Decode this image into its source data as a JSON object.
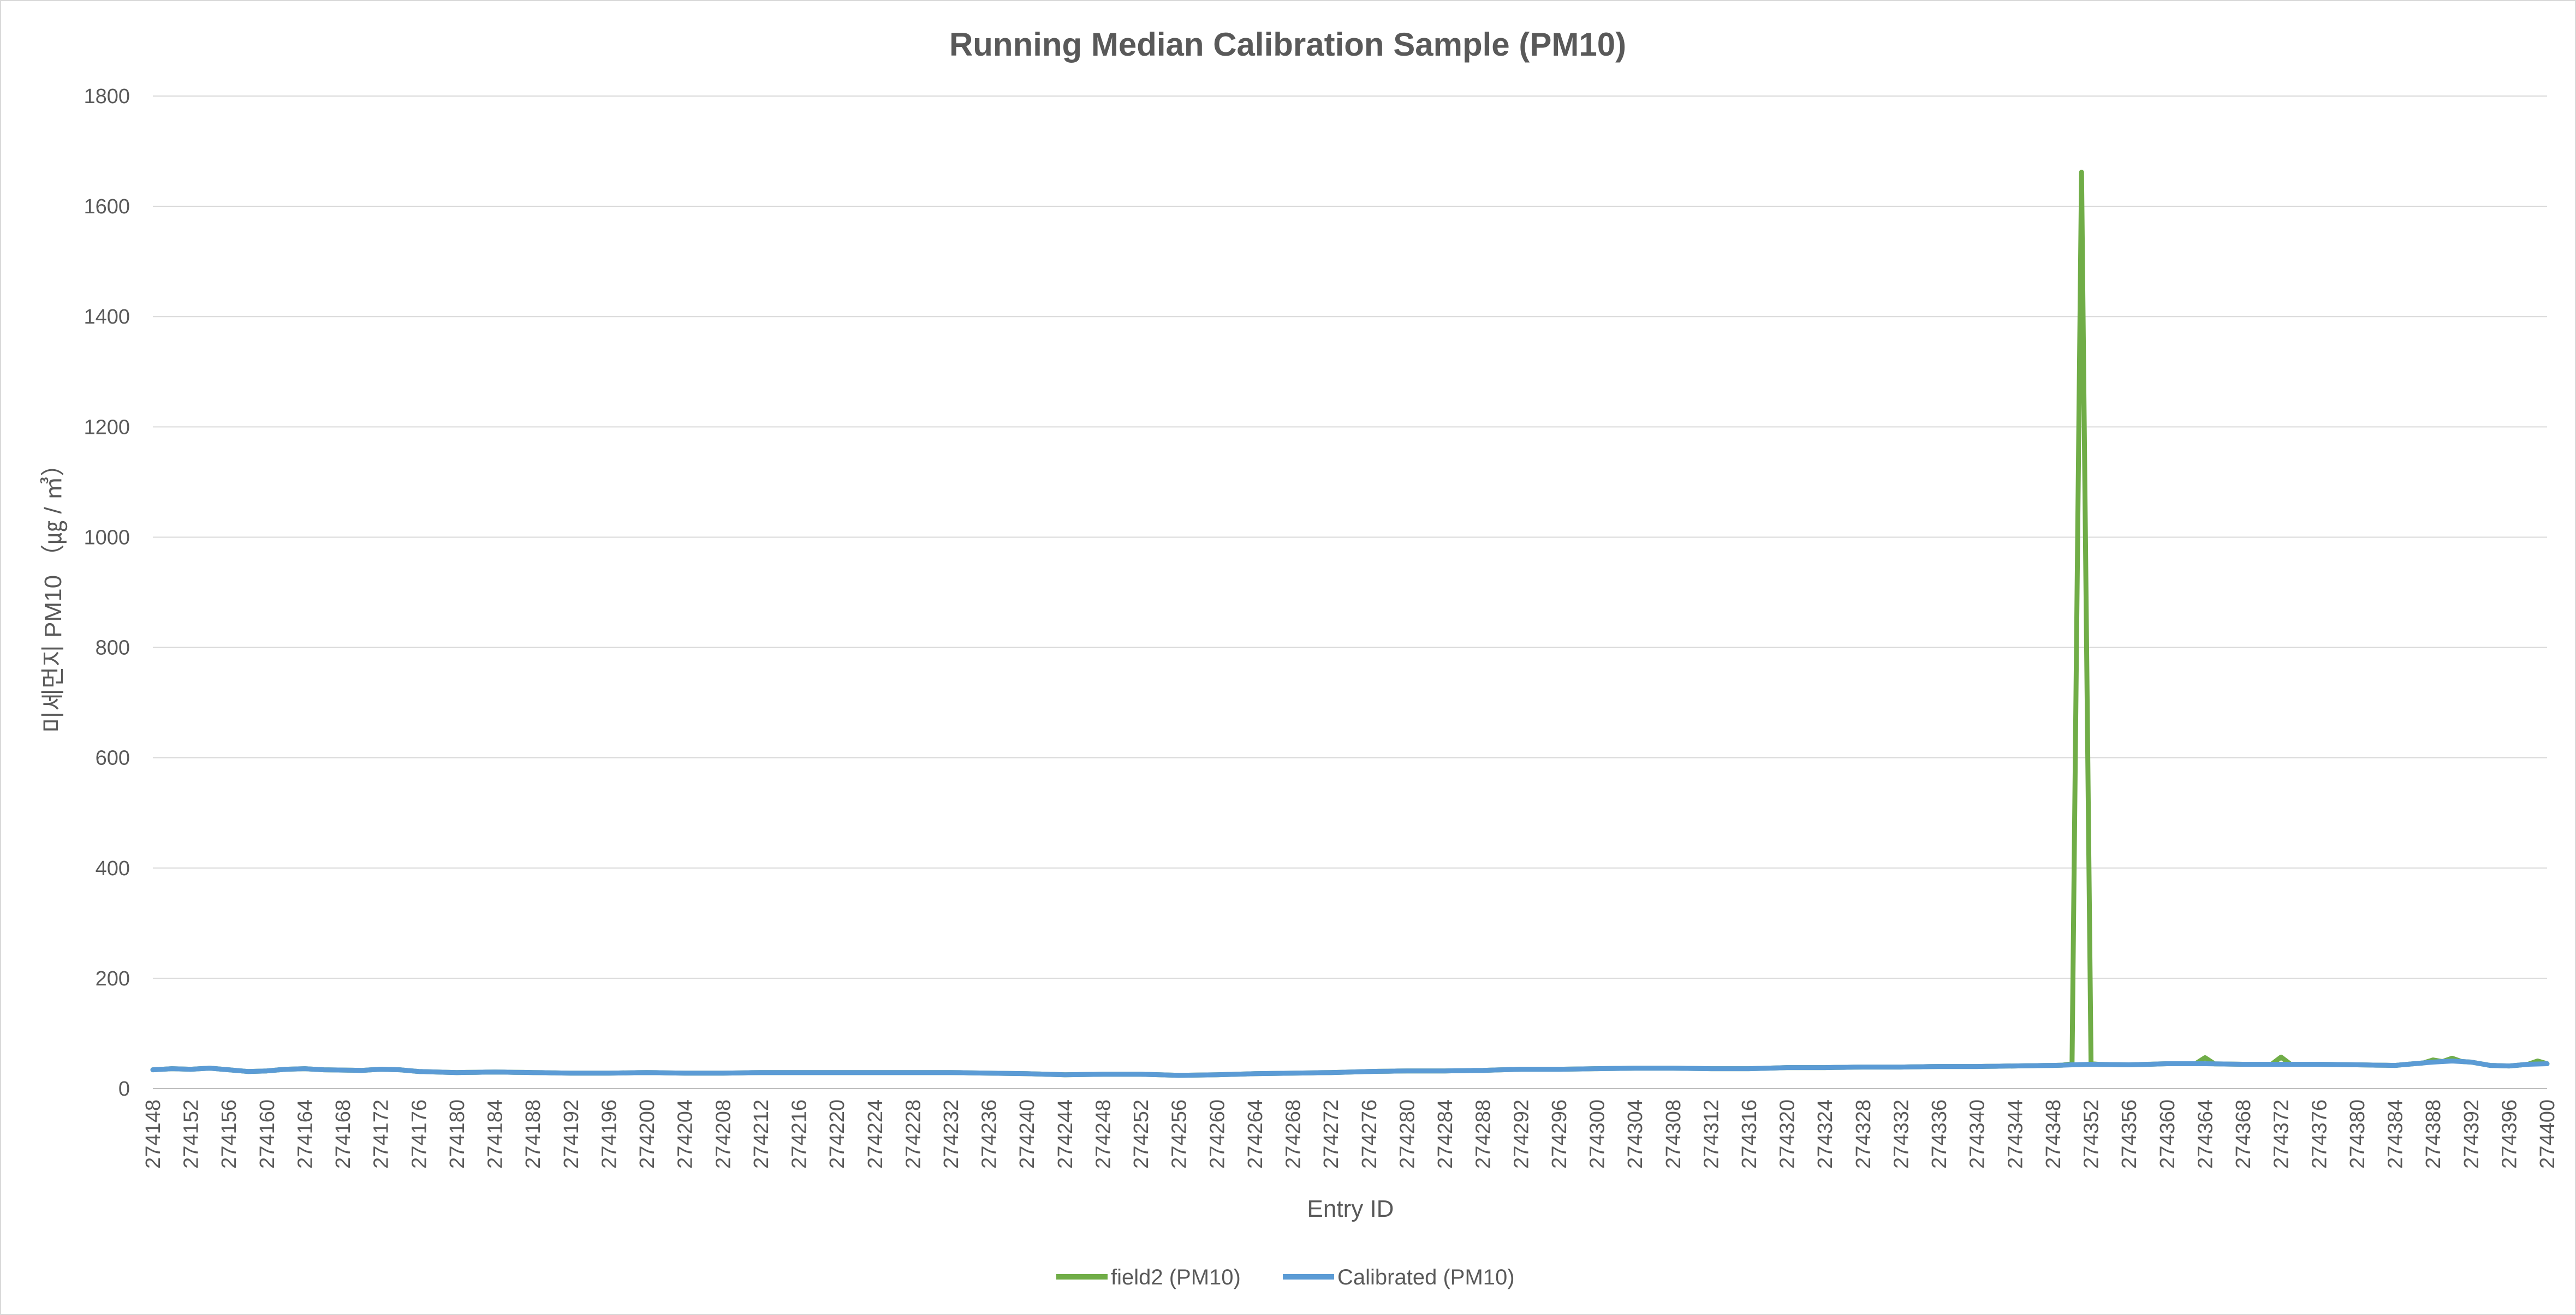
{
  "chart_data": {
    "type": "line",
    "title": "Running Median Calibration Sample (PM10)",
    "xlabel": "Entry ID",
    "ylabel": "미세먼지  PM10 （㎍ / ㎥）",
    "ylim": [
      0,
      1800
    ],
    "yticks": [
      0,
      200,
      400,
      600,
      800,
      1000,
      1200,
      1400,
      1600,
      1800
    ],
    "grid": true,
    "legend_position": "bottom",
    "x_start": 274148,
    "x_end": 274400,
    "x_tick_labels": [
      "274148",
      "274152",
      "274156",
      "274160",
      "274164",
      "274168",
      "274172",
      "274176",
      "274180",
      "274184",
      "274188",
      "274192",
      "274196",
      "274200",
      "274204",
      "274208",
      "274212",
      "274216",
      "274220",
      "274224",
      "274228",
      "274232",
      "274236",
      "274240",
      "274244",
      "274248",
      "274252",
      "274256",
      "274260",
      "274264",
      "274268",
      "274272",
      "274276",
      "274280",
      "274284",
      "274288",
      "274292",
      "274296",
      "274300",
      "274304",
      "274308",
      "274312",
      "274316",
      "274320",
      "274324",
      "274328",
      "274332",
      "274336",
      "274340",
      "274344",
      "274348",
      "274352",
      "274356",
      "274360",
      "274364",
      "274368",
      "274372",
      "274376",
      "274380",
      "274384",
      "274388",
      "274392",
      "274396",
      "274400"
    ],
    "calibrated_anchors": [
      [
        274148,
        34
      ],
      [
        274150,
        36
      ],
      [
        274152,
        35
      ],
      [
        274154,
        37
      ],
      [
        274156,
        34
      ],
      [
        274158,
        31
      ],
      [
        274160,
        32
      ],
      [
        274162,
        35
      ],
      [
        274164,
        36
      ],
      [
        274166,
        34
      ],
      [
        274170,
        33
      ],
      [
        274172,
        35
      ],
      [
        274174,
        34
      ],
      [
        274176,
        31
      ],
      [
        274180,
        29
      ],
      [
        274184,
        30
      ],
      [
        274188,
        29
      ],
      [
        274192,
        28
      ],
      [
        274196,
        28
      ],
      [
        274200,
        29
      ],
      [
        274204,
        28
      ],
      [
        274208,
        28
      ],
      [
        274212,
        29
      ],
      [
        274216,
        29
      ],
      [
        274220,
        29
      ],
      [
        274224,
        29
      ],
      [
        274228,
        29
      ],
      [
        274232,
        29
      ],
      [
        274236,
        28
      ],
      [
        274240,
        27
      ],
      [
        274242,
        26
      ],
      [
        274244,
        25
      ],
      [
        274248,
        26
      ],
      [
        274252,
        26
      ],
      [
        274256,
        24
      ],
      [
        274260,
        25
      ],
      [
        274264,
        27
      ],
      [
        274268,
        28
      ],
      [
        274272,
        29
      ],
      [
        274276,
        31
      ],
      [
        274280,
        32
      ],
      [
        274284,
        32
      ],
      [
        274288,
        33
      ],
      [
        274292,
        35
      ],
      [
        274296,
        35
      ],
      [
        274300,
        36
      ],
      [
        274304,
        37
      ],
      [
        274308,
        37
      ],
      [
        274312,
        36
      ],
      [
        274316,
        36
      ],
      [
        274320,
        38
      ],
      [
        274324,
        38
      ],
      [
        274328,
        39
      ],
      [
        274332,
        39
      ],
      [
        274336,
        40
      ],
      [
        274340,
        40
      ],
      [
        274344,
        41
      ],
      [
        274348,
        42
      ],
      [
        274352,
        44
      ],
      [
        274356,
        43
      ],
      [
        274360,
        45
      ],
      [
        274364,
        45
      ],
      [
        274368,
        44
      ],
      [
        274372,
        44
      ],
      [
        274376,
        44
      ],
      [
        274380,
        43
      ],
      [
        274384,
        42
      ],
      [
        274388,
        48
      ],
      [
        274390,
        50
      ],
      [
        274392,
        48
      ],
      [
        274394,
        42
      ],
      [
        274396,
        41
      ],
      [
        274398,
        44
      ],
      [
        274400,
        45
      ]
    ],
    "field2_deviations": [
      [
        274350,
        45
      ],
      [
        274351,
        1662
      ],
      [
        274352,
        45
      ],
      [
        274364,
        56
      ],
      [
        274372,
        57
      ],
      [
        274388,
        52
      ],
      [
        274390,
        55
      ],
      [
        274399,
        50
      ]
    ],
    "series": [
      {
        "name": "field2 (PM10)",
        "color": "#70ad47"
      },
      {
        "name": "Calibrated (PM10)",
        "color": "#5b9bd5"
      }
    ]
  }
}
